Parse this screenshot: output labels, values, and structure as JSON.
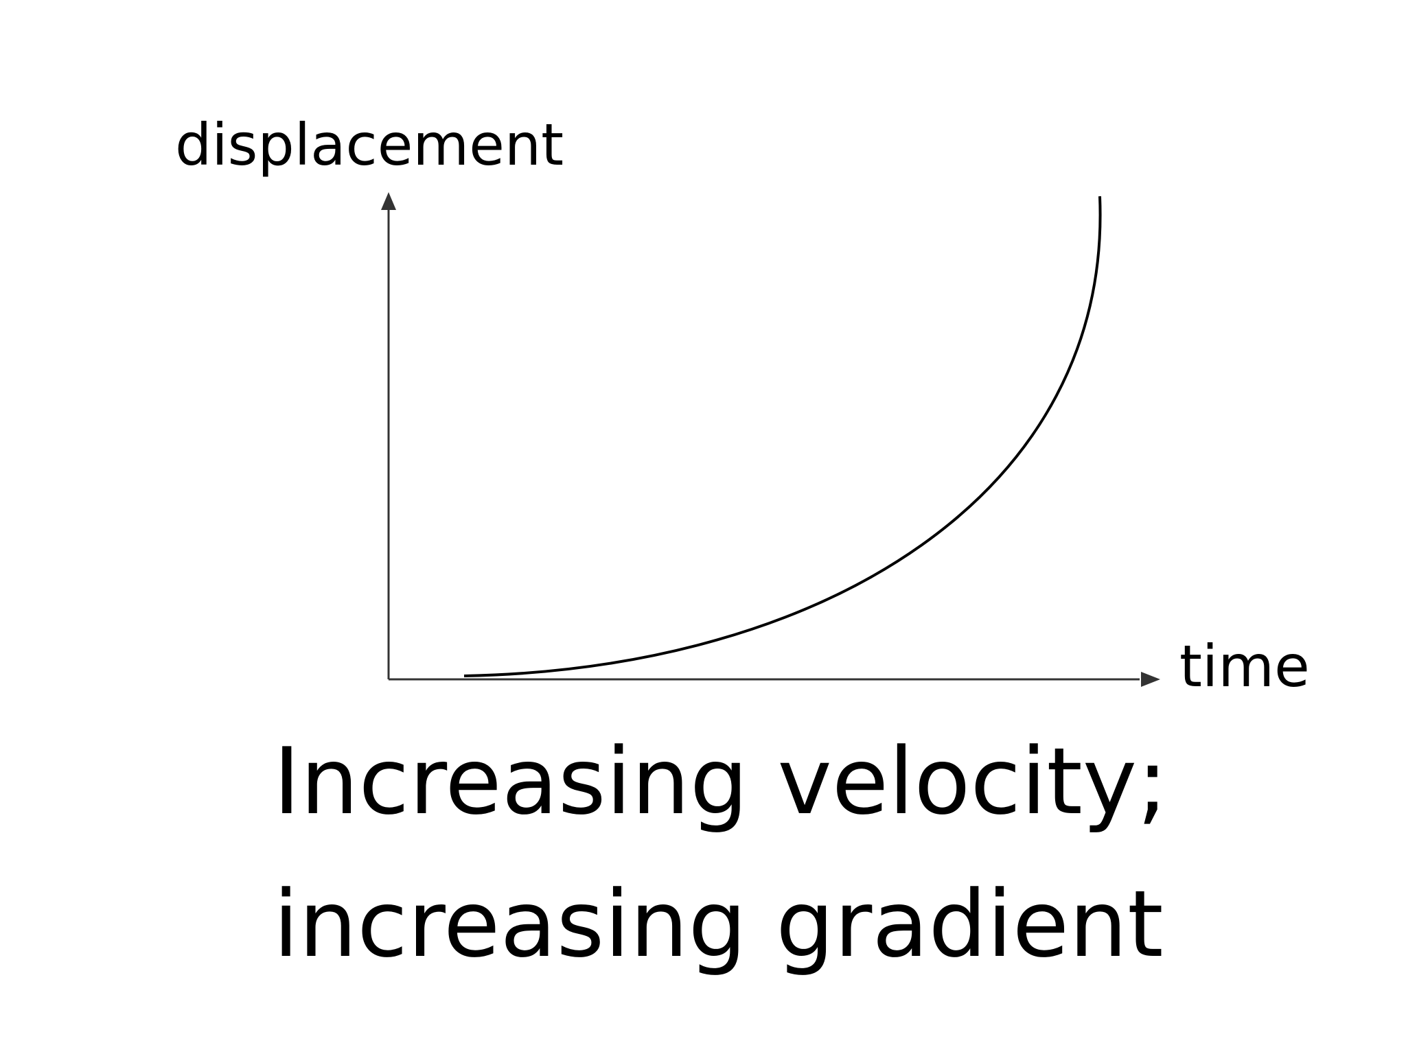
{
  "diagram": {
    "y_axis_label": "displacement",
    "x_axis_label": "time",
    "caption": {
      "line1": "Increasing velocity;",
      "line2": "increasing gradient"
    }
  },
  "colors": {
    "line": "#000000",
    "axis": "#333333",
    "background": "#ffffff"
  }
}
